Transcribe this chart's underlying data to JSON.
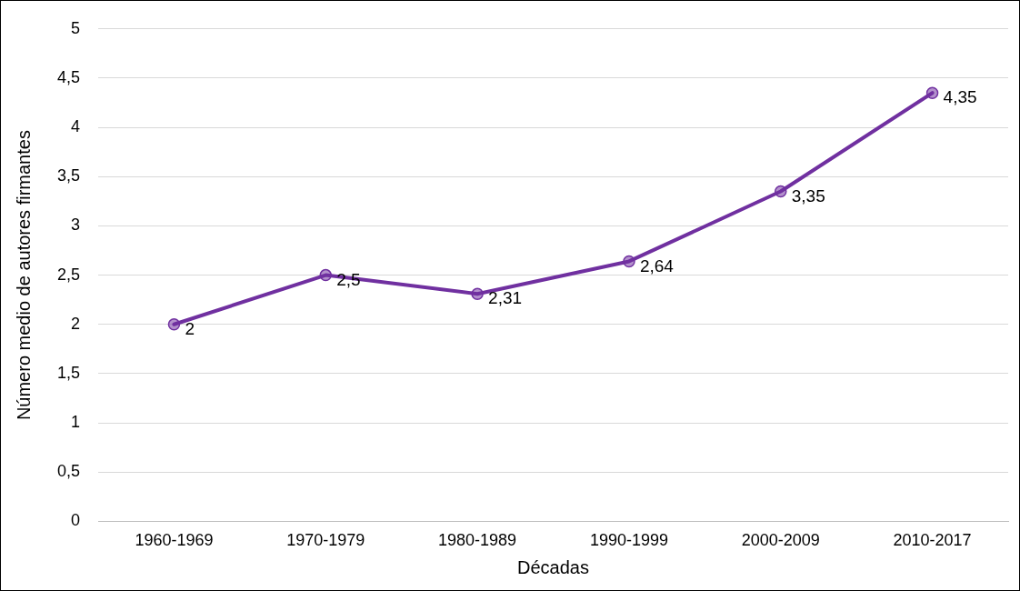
{
  "chart_data": {
    "type": "line",
    "xlabel": "Décadas",
    "ylabel": "Número medio de autores firmantes",
    "categories": [
      "1960-1969",
      "1970-1979",
      "1980-1989",
      "1990-1999",
      "2000-2009",
      "2010-2017"
    ],
    "series": [
      {
        "color": "#7030a0",
        "values": [
          2,
          2.5,
          2.31,
          2.64,
          3.35,
          4.35
        ],
        "value_labels": [
          "2",
          "2,5",
          "2,31",
          "2,64",
          "3,35",
          "4,35"
        ]
      }
    ],
    "ylim": [
      0,
      5
    ],
    "yticks": [
      0,
      {
        "value": 0.5,
        "label": "0,5"
      },
      1,
      {
        "value": 1.5,
        "label": "1,5"
      },
      2,
      {
        "value": 2.5,
        "label": "2,5"
      },
      3,
      {
        "value": 3.5,
        "label": "3,5"
      },
      4,
      {
        "value": 4.5,
        "label": "4,5"
      },
      5
    ],
    "grid": "y",
    "legend": false,
    "marker": "circle",
    "line_style": "solid"
  }
}
